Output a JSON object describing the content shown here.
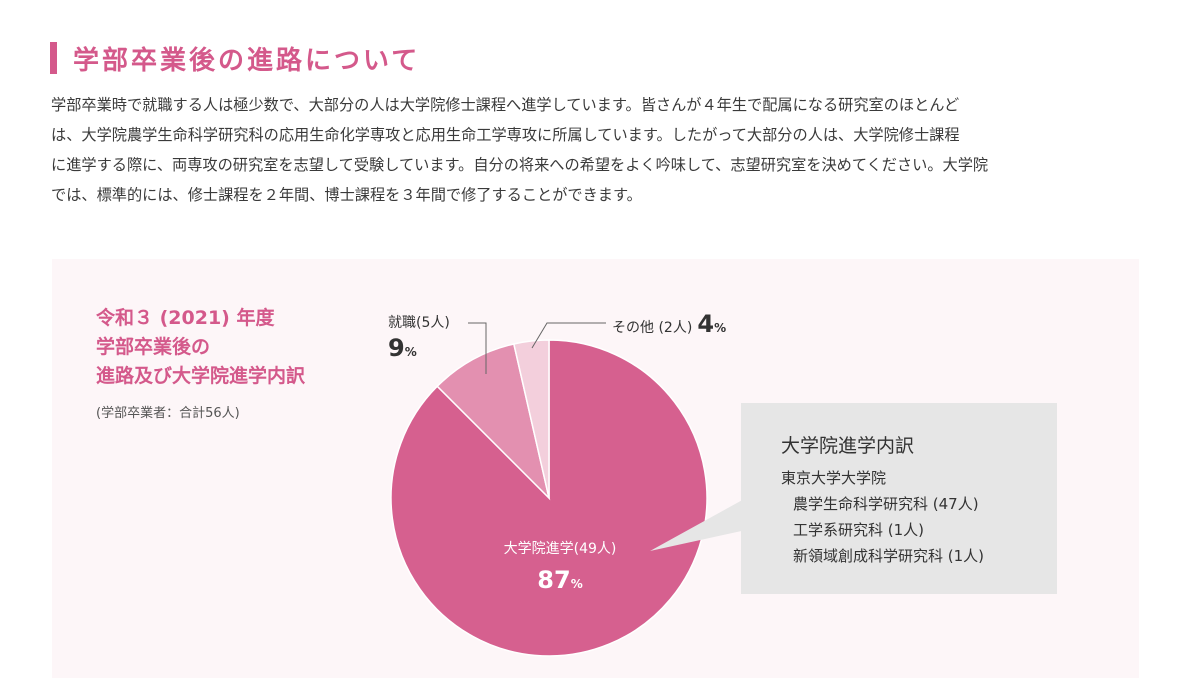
{
  "section": {
    "heading": "学部卒業後の進路について",
    "intro_lines": [
      "学部卒業時で就職する人は極少数で、大部分の人は大学院修士課程へ進学しています。皆さんが４年生で配属になる研究室のほとんど",
      "は、大学院農学生命科学研究科の応用生命化学専攻と応用生命工学専攻に所属しています。したがって大部分の人は、大学院修士課程",
      "に進学する際に、両専攻の研究室を志望して受験しています。自分の将来への希望をよく吟味して、志望研究室を決めてください。大学院",
      "では、標準的には、修士課程を２年間、博士課程を３年間で修了することができます。"
    ]
  },
  "chart_data": {
    "type": "pie",
    "title_lines": [
      "令和３ (2021) 年度",
      "学部卒業後の",
      "進路及び大学院進学内訳"
    ],
    "note": "(学部卒業者：合計56人)",
    "start_angle_deg": 0,
    "direction": "clockwise",
    "slices": [
      {
        "name": "大学院進学",
        "count_text": "(49人)",
        "count": 49,
        "percent": 87,
        "pct_unit": "%",
        "color": "#d6608f"
      },
      {
        "name": "就職",
        "count_text": "(5人)",
        "count": 5,
        "percent": 9,
        "pct_unit": "%",
        "color": "#e390b0"
      },
      {
        "name": "その他",
        "count_text": "(2人)",
        "count": 2,
        "percent": 4,
        "pct_unit": "%",
        "color": "#f3cfdc"
      }
    ]
  },
  "breakdown": {
    "title": "大学院進学内訳",
    "university": "東京大学大学院",
    "items": [
      {
        "label": "農学生命科学研究科 (47人)"
      },
      {
        "label": "工学系研究科 (1人)"
      },
      {
        "label": "新領域創成科学研究科 (1人)"
      }
    ]
  },
  "colors": {
    "accent": "#d4598b",
    "panel_bg": "#fdf6f8",
    "callout_bg": "#e6e6e6"
  }
}
